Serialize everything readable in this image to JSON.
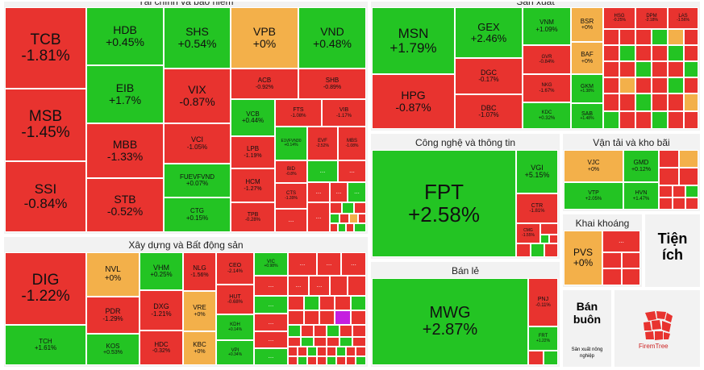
{
  "sectors": {
    "finance": {
      "title": "Tài chính và bảo hiểm"
    },
    "manufacturing": {
      "title": "Sản xuất"
    },
    "construction": {
      "title": "Xây dựng và Bất động sản"
    },
    "technology": {
      "title": "Công nghệ và thông tin"
    },
    "transport": {
      "title": "Vận tải và kho bãi"
    },
    "retail": {
      "title": "Bán lẻ"
    },
    "mining": {
      "title": "Khai khoáng"
    },
    "utilities": {
      "title": "Tiện ích"
    },
    "wholesale": {
      "title": "Bán buôn"
    },
    "agriculture": {
      "title": "Sản xuất nông nghiệp"
    }
  },
  "tiles": {
    "TCB": {
      "t": "TCB",
      "v": "-1.81%"
    },
    "MSB": {
      "t": "MSB",
      "v": "-1.45%"
    },
    "SSI": {
      "t": "SSI",
      "v": "-0.84%"
    },
    "HDB": {
      "t": "HDB",
      "v": "+0.45%"
    },
    "EIB": {
      "t": "EIB",
      "v": "+1.7%"
    },
    "MBB": {
      "t": "MBB",
      "v": "-1.33%"
    },
    "STB": {
      "t": "STB",
      "v": "-0.52%"
    },
    "SHS": {
      "t": "SHS",
      "v": "+0.54%"
    },
    "VPB": {
      "t": "VPB",
      "v": "+0%"
    },
    "VND": {
      "t": "VND",
      "v": "+0.48%"
    },
    "VIX": {
      "t": "VIX",
      "v": "-0.87%"
    },
    "ACB": {
      "t": "ACB",
      "v": "-0.92%"
    },
    "SHB": {
      "t": "SHB",
      "v": "-0.89%"
    },
    "VCI": {
      "t": "VCI",
      "v": "-1.05%"
    },
    "FUEVFVND": {
      "t": "FUEVFVND",
      "v": "+0.07%"
    },
    "CTG": {
      "t": "CTG",
      "v": "+0.15%"
    },
    "VCB": {
      "t": "VCB",
      "v": "+0.44%"
    },
    "FTS": {
      "t": "FTS",
      "v": "-1.08%"
    },
    "VIB": {
      "t": "VIB",
      "v": "-1.17%"
    },
    "LPB": {
      "t": "LPB",
      "v": "-1.19%"
    },
    "HCM": {
      "t": "HCM",
      "v": "-1.27%"
    },
    "TPB": {
      "t": "TPB",
      "v": "-0.28%"
    },
    "EVFVN30": {
      "t": "E1VFVN30",
      "v": "+0.14%"
    },
    "EVF": {
      "t": "EVF",
      "v": "-2.52%"
    },
    "MBS": {
      "t": "MBS",
      "v": "-1.08%"
    },
    "BID": {
      "t": "BID",
      "v": "-0.8%"
    },
    "CTS": {
      "t": "CTS",
      "v": "-1.39%"
    },
    "MSN": {
      "t": "MSN",
      "v": "+1.79%"
    },
    "HPG": {
      "t": "HPG",
      "v": "-0.87%"
    },
    "GEX": {
      "t": "GEX",
      "v": "+2.46%"
    },
    "DGC": {
      "t": "DGC",
      "v": "-0.17%"
    },
    "DBC": {
      "t": "DBC",
      "v": "-1.07%"
    },
    "VNM": {
      "t": "VNM",
      "v": "+1.09%"
    },
    "GVR": {
      "t": "GVR",
      "v": "-0.84%"
    },
    "NKG": {
      "t": "NKG",
      "v": "-1.67%"
    },
    "KDC": {
      "t": "KDC",
      "v": "+0.32%"
    },
    "BSR": {
      "t": "BSR",
      "v": "+0%"
    },
    "BAF": {
      "t": "BAF",
      "v": "+0%"
    },
    "GKM": {
      "t": "GKM",
      "v": "+1.38%"
    },
    "SAB": {
      "t": "SAB",
      "v": "+1.48%"
    },
    "HSG": {
      "t": "HSG",
      "v": "-0.25%"
    },
    "DPM": {
      "t": "DPM",
      "v": "-2.18%"
    },
    "LAS": {
      "t": "LAS",
      "v": "-1.56%"
    },
    "FPT": {
      "t": "FPT",
      "v": "+2.58%"
    },
    "VGI": {
      "t": "VGI",
      "v": "+5.15%"
    },
    "CTR": {
      "t": "CTR",
      "v": "-1.81%"
    },
    "CMG": {
      "t": "CMG",
      "v": "-1.55%"
    },
    "VJC": {
      "t": "VJC",
      "v": "+0%"
    },
    "GMD": {
      "t": "GMD",
      "v": "+0.12%"
    },
    "VTP": {
      "t": "VTP",
      "v": "+2.05%"
    },
    "HVN": {
      "t": "HVN",
      "v": "+1.47%"
    },
    "PVS": {
      "t": "PVS",
      "v": "+0%"
    },
    "DIG": {
      "t": "DIG",
      "v": "-1.22%"
    },
    "TCH": {
      "t": "TCH",
      "v": "+1.61%"
    },
    "NVL": {
      "t": "NVL",
      "v": "+0%"
    },
    "PDR": {
      "t": "PDR",
      "v": "-1.29%"
    },
    "KOS": {
      "t": "KOS",
      "v": "+0.53%"
    },
    "VHM": {
      "t": "VHM",
      "v": "+0.25%"
    },
    "DXG": {
      "t": "DXG",
      "v": "-1.21%"
    },
    "HDC": {
      "t": "HDC",
      "v": "-0.32%"
    },
    "NLG": {
      "t": "NLG",
      "v": "-1.56%"
    },
    "VRE": {
      "t": "VRE",
      "v": "+0%"
    },
    "KBC": {
      "t": "KBC",
      "v": "+0%"
    },
    "CEO": {
      "t": "CEO",
      "v": "-2.14%"
    },
    "HUT": {
      "t": "HUT",
      "v": "-0.68%"
    },
    "KDH": {
      "t": "KDH",
      "v": "+0.14%"
    },
    "VPI": {
      "t": "VPI",
      "v": "+0.34%"
    },
    "VIC": {
      "t": "VIC",
      "v": "+0.98%"
    },
    "MWG": {
      "t": "MWG",
      "v": "+2.87%"
    },
    "PNJ": {
      "t": "PNJ",
      "v": "-0.11%"
    },
    "FRT": {
      "t": "FRT",
      "v": "+1.22%"
    }
  },
  "more_label": "...",
  "logo": {
    "text": "FiremTree"
  },
  "colors": {
    "down": "#e8332f",
    "up": "#23c423",
    "flat": "#f3b04a",
    "purple": "#c51fe0"
  }
}
